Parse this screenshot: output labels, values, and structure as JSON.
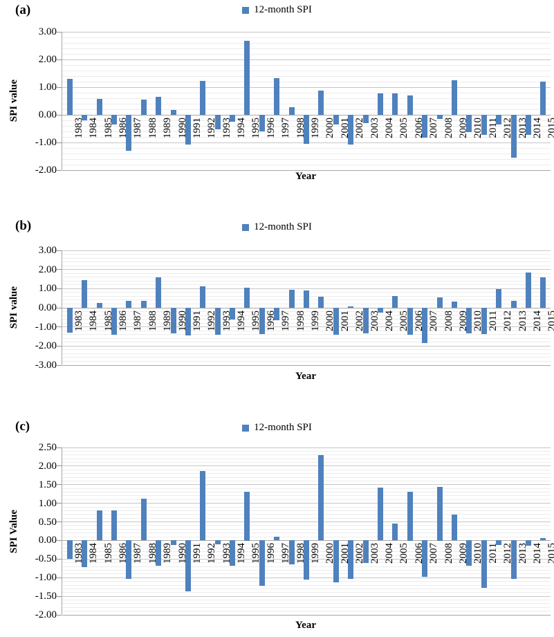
{
  "chart_data": [
    {
      "panel": "(a)",
      "type": "bar",
      "legend": "12-month SPI",
      "legend_position": "top-center",
      "xlabel": "Year",
      "ylabel": "SPI value",
      "bar_color": "#4f81bd",
      "grid": true,
      "ylim": [
        -2.0,
        3.0
      ],
      "ytick_step": 1.0,
      "minor_grid_step": 0.2,
      "yticks": [
        "3.00",
        "2.00",
        "1.00",
        "0.00",
        "-1.00",
        "-2.00"
      ],
      "categories": [
        "1983",
        "1984",
        "1985",
        "1986",
        "1987",
        "1988",
        "1989",
        "1990",
        "1991",
        "1992",
        "1993",
        "1994",
        "1995",
        "1996",
        "1997",
        "1998",
        "1999",
        "2000",
        "2001",
        "2002",
        "2003",
        "2004",
        "2005",
        "2006",
        "2007",
        "2008",
        "2009",
        "2010",
        "2011",
        "2012",
        "2013",
        "2014",
        "2015"
      ],
      "values": [
        1.3,
        -0.2,
        0.57,
        -0.35,
        -1.31,
        0.54,
        0.65,
        0.17,
        -1.07,
        1.23,
        -0.52,
        -0.25,
        2.68,
        -0.6,
        1.33,
        0.28,
        -1.05,
        0.88,
        -0.35,
        -1.07,
        -0.3,
        0.77,
        0.78,
        0.7,
        -0.82,
        -0.15,
        1.25,
        -0.62,
        -0.73,
        -0.35,
        -1.55,
        -0.73,
        1.19
      ]
    },
    {
      "panel": "(b)",
      "type": "bar",
      "legend": "12-month SPI",
      "legend_position": "top-center",
      "xlabel": "Year",
      "ylabel": "SPI value",
      "bar_color": "#4f81bd",
      "grid": true,
      "ylim": [
        -3.0,
        3.0
      ],
      "ytick_step": 1.0,
      "minor_grid_step": 0.2,
      "yticks": [
        "3.00",
        "2.00",
        "1.00",
        "0.00",
        "-1.00",
        "-2.00",
        "-3.00"
      ],
      "categories": [
        "1983",
        "1984",
        "1985",
        "1986",
        "1987",
        "1988",
        "1989",
        "1990",
        "1991",
        "1992",
        "1993",
        "1994",
        "1995",
        "1996",
        "1997",
        "1998",
        "1999",
        "2000",
        "2001",
        "2002",
        "2003",
        "2004",
        "2005",
        "2006",
        "2007",
        "2008",
        "2009",
        "2010",
        "2011",
        "2012",
        "2013",
        "2014",
        "2015"
      ],
      "values": [
        -1.3,
        1.44,
        0.26,
        -1.4,
        0.35,
        0.38,
        1.58,
        -1.35,
        -1.45,
        1.12,
        -1.4,
        -0.6,
        1.05,
        -1.38,
        -0.65,
        0.94,
        0.9,
        0.58,
        -1.42,
        0.08,
        -1.35,
        -0.25,
        0.61,
        -1.4,
        -1.85,
        0.54,
        0.33,
        -1.32,
        -1.36,
        0.98,
        0.36,
        1.85,
        1.6
      ]
    },
    {
      "panel": "(c)",
      "type": "bar",
      "legend": "12-month SPI",
      "legend_position": "top-center",
      "xlabel": "Year",
      "ylabel": "SPI Value",
      "bar_color": "#4f81bd",
      "grid": true,
      "ylim": [
        -2.0,
        2.5
      ],
      "ytick_step": 0.5,
      "minor_grid_step": 0.1,
      "yticks": [
        "2.50",
        "2.00",
        "1.50",
        "1.00",
        "0.50",
        "0.00",
        "-0.50",
        "-1.00",
        "-1.50",
        "-2.00"
      ],
      "categories": [
        "1983",
        "1984",
        "1985",
        "1986",
        "1987",
        "1988",
        "1989",
        "1990",
        "1991",
        "1992",
        "1993",
        "1994",
        "1995",
        "1996",
        "1997",
        "1998",
        "1999",
        "2000",
        "2001",
        "2002",
        "2003",
        "2004",
        "2005",
        "2006",
        "2007",
        "2008",
        "2009",
        "2010",
        "2011",
        "2012",
        "2013",
        "2014",
        "2015"
      ],
      "values": [
        -0.5,
        -0.72,
        0.8,
        0.81,
        -1.03,
        1.13,
        -0.68,
        -0.12,
        -1.37,
        1.86,
        -0.1,
        -0.68,
        1.32,
        -1.23,
        0.11,
        -0.65,
        -1.05,
        2.3,
        -1.12,
        -1.03,
        -0.6,
        1.43,
        0.45,
        1.32,
        -0.97,
        1.45,
        0.7,
        -0.68,
        -1.28,
        -0.12,
        -1.03,
        -0.14,
        0.07
      ]
    }
  ]
}
